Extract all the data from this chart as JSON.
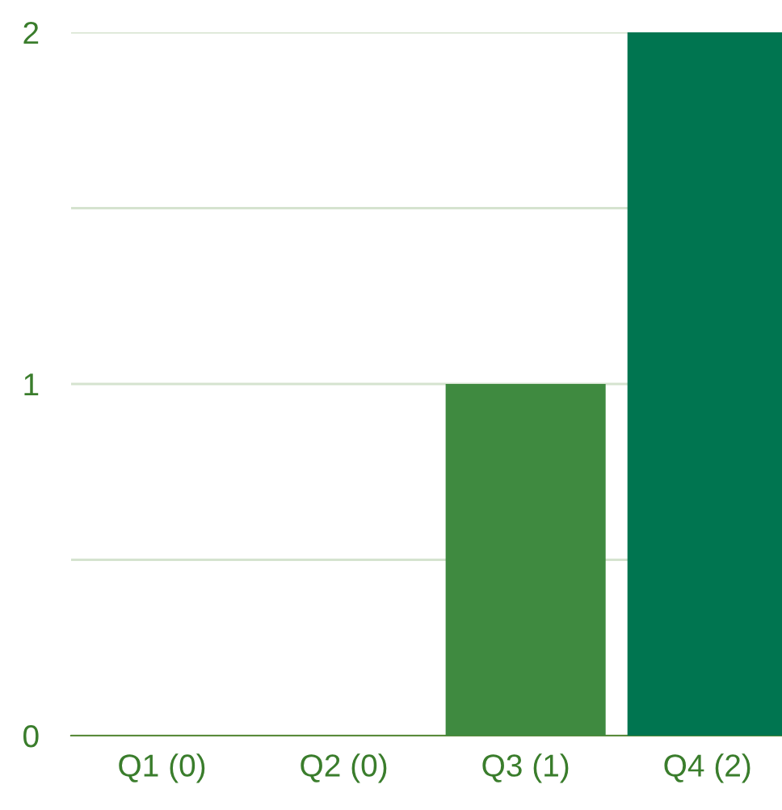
{
  "chart_data": {
    "type": "bar",
    "categories": [
      "Q1 (0)",
      "Q2 (0)",
      "Q3 (1)",
      "Q4 (2)"
    ],
    "values": [
      0,
      0,
      1,
      2
    ],
    "colors": [
      "#3f8a40",
      "#3f8a40",
      "#3f8a40",
      "#007550"
    ],
    "ylim": [
      0,
      2
    ],
    "yticks": [
      0,
      {
        "value": 0.5,
        "label": null
      },
      1,
      {
        "value": 1.5,
        "label": null
      },
      2
    ],
    "grid": "y",
    "legend": false
  }
}
